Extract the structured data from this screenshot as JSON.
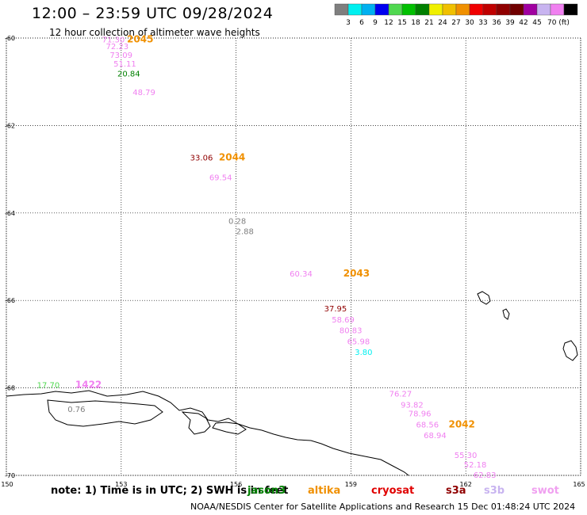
{
  "header": {
    "title": "12:00 – 23:59 UTC 09/28/2024",
    "subtitle": "12 hour collection of altimeter wave heights"
  },
  "colorbar": {
    "colors": [
      "#7f7f7f",
      "#00f0f0",
      "#00b0f0",
      "#0000f0",
      "#50d850",
      "#00c000",
      "#008000",
      "#f0f000",
      "#f0c000",
      "#f09000",
      "#f00000",
      "#c00000",
      "#900000",
      "#700000",
      "#a000a0",
      "#c8b4f0",
      "#f080f0",
      "#000000"
    ],
    "labels": [
      "3",
      "6",
      "9",
      "12",
      "15",
      "18",
      "21",
      "24",
      "27",
      "30",
      "33",
      "36",
      "39",
      "42",
      "45",
      "70 (ft)"
    ]
  },
  "chart_data": {
    "type": "scatter",
    "xlim": [
      150,
      165
    ],
    "ylim": [
      -70,
      -60
    ],
    "xticks": [
      "150",
      "153",
      "156",
      "159",
      "162",
      "165"
    ],
    "yticks": [
      "-60",
      "-62",
      "-64",
      "-66",
      "-68",
      "-70"
    ],
    "grid": "dotted",
    "points": [
      {
        "x": 152.5,
        "y": -60.1,
        "label": "71.30",
        "color": "#f080f0"
      },
      {
        "x": 152.6,
        "y": -60.25,
        "label": "72.23",
        "color": "#f080f0"
      },
      {
        "x": 152.7,
        "y": -60.45,
        "label": "73.09",
        "color": "#f080f0"
      },
      {
        "x": 152.8,
        "y": -60.65,
        "label": "51.11",
        "color": "#f080f0"
      },
      {
        "x": 152.9,
        "y": -60.88,
        "label": "20.84",
        "color": "#008000"
      },
      {
        "x": 153.3,
        "y": -61.3,
        "label": "48.79",
        "color": "#f080f0"
      },
      {
        "x": 154.8,
        "y": -62.8,
        "label": "33.06",
        "color": "#900000"
      },
      {
        "x": 155.3,
        "y": -63.25,
        "label": "69.54",
        "color": "#f080f0"
      },
      {
        "x": 155.8,
        "y": -64.25,
        "label": "0.28",
        "color": "#7f7f7f"
      },
      {
        "x": 156.0,
        "y": -64.48,
        "label": "2.88",
        "color": "#7f7f7f"
      },
      {
        "x": 157.4,
        "y": -65.45,
        "label": "60.34",
        "color": "#f080f0"
      },
      {
        "x": 158.3,
        "y": -66.25,
        "label": "37.95",
        "color": "#900000"
      },
      {
        "x": 158.5,
        "y": -66.5,
        "label": "58.69",
        "color": "#f080f0"
      },
      {
        "x": 158.7,
        "y": -66.75,
        "label": "80.83",
        "color": "#f080f0"
      },
      {
        "x": 158.9,
        "y": -67.0,
        "label": "65.98",
        "color": "#f080f0"
      },
      {
        "x": 159.1,
        "y": -67.25,
        "label": "3.80",
        "color": "#00f0f0"
      },
      {
        "x": 150.8,
        "y": -68.0,
        "label": "17.70",
        "color": "#50d850"
      },
      {
        "x": 151.6,
        "y": -68.55,
        "label": "0.76",
        "color": "#7f7f7f"
      },
      {
        "x": 160.0,
        "y": -68.2,
        "label": "76.27",
        "color": "#f080f0"
      },
      {
        "x": 160.3,
        "y": -68.45,
        "label": "93.82",
        "color": "#f080f0"
      },
      {
        "x": 160.5,
        "y": -68.65,
        "label": "78.96",
        "color": "#f080f0"
      },
      {
        "x": 160.7,
        "y": -68.9,
        "label": "68.56",
        "color": "#f080f0"
      },
      {
        "x": 160.9,
        "y": -69.15,
        "label": "68.94",
        "color": "#f080f0"
      },
      {
        "x": 161.7,
        "y": -69.6,
        "label": "55.30",
        "color": "#f080f0"
      },
      {
        "x": 161.95,
        "y": -69.82,
        "label": "52.18",
        "color": "#f080f0"
      },
      {
        "x": 162.2,
        "y": -70.05,
        "label": "62.83",
        "color": "#f080f0"
      }
    ],
    "passes": [
      {
        "x": 153.15,
        "y": -60.1,
        "label": "2045",
        "color": "#f09000"
      },
      {
        "x": 155.55,
        "y": -62.8,
        "label": "2044",
        "color": "#f09000"
      },
      {
        "x": 158.8,
        "y": -65.45,
        "label": "2043",
        "color": "#f09000"
      },
      {
        "x": 161.55,
        "y": -68.9,
        "label": "2042",
        "color": "#f09000"
      },
      {
        "x": 151.8,
        "y": -68.0,
        "label": "1422",
        "color": "#f080f0"
      }
    ]
  },
  "footer": {
    "note": "note: 1) Time is in UTC; 2) SWH is in feet",
    "credit": "NOAA/NESDIS Center for Satellite Applications and Research    15 Dec 01:48:24 UTC 2024"
  },
  "satellites": [
    {
      "name": "jason3",
      "color": "#008000"
    },
    {
      "name": "altika",
      "color": "#f09000"
    },
    {
      "name": "cryosat",
      "color": "#e00000"
    },
    {
      "name": "s3a",
      "color": "#900000"
    },
    {
      "name": "s3b",
      "color": "#c8b4f0"
    },
    {
      "name": "swot",
      "color": "#f0a0f0"
    }
  ]
}
